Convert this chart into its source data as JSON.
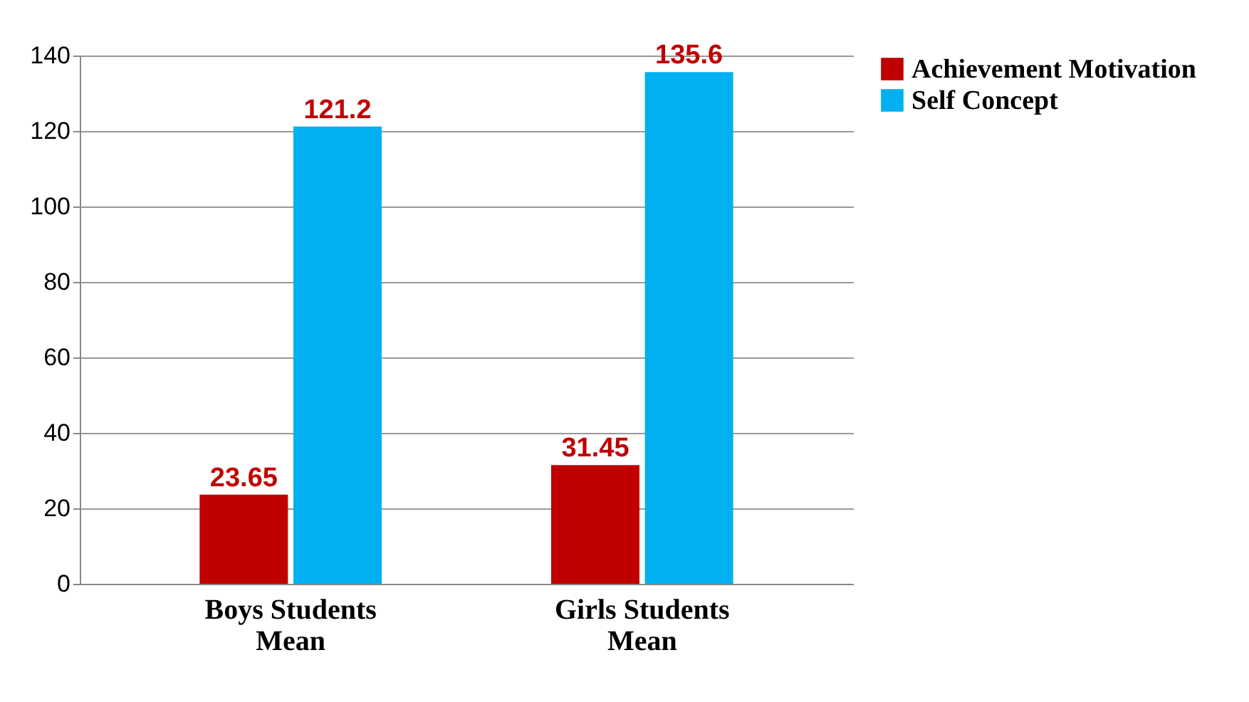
{
  "chart_data": {
    "type": "bar",
    "categories": [
      "Boys Students\nMean",
      "Girls Students\nMean"
    ],
    "series": [
      {
        "name": "Achievement Motivation",
        "color": "#c00000",
        "values": [
          23.65,
          31.45
        ]
      },
      {
        "name": "Self Concept",
        "color": "#00b0f0",
        "values": [
          121.2,
          135.6
        ]
      }
    ],
    "ylim": [
      0,
      140
    ],
    "yticks": [
      0,
      20,
      40,
      60,
      80,
      100,
      120,
      140
    ],
    "grid": "y",
    "legend": "right",
    "data_labels": true
  }
}
